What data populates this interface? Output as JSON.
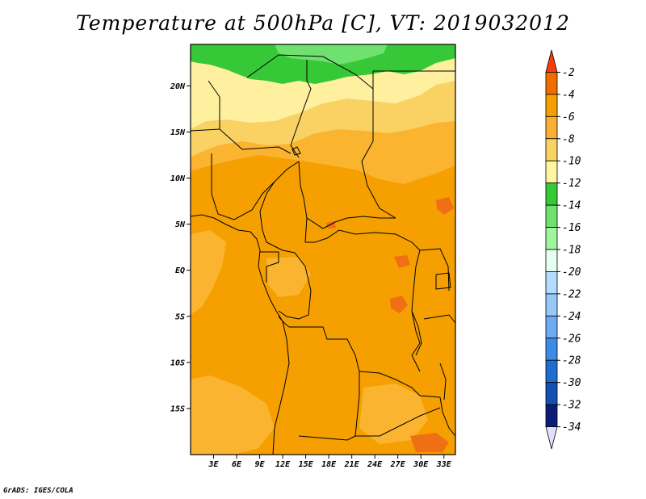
{
  "title": "Temperature at 500hPa [C], VT: 2019032012",
  "credit": "GrADS: IGES/COLA",
  "map": {
    "lon_range": [
      0,
      34.5
    ],
    "lat_range": [
      -20,
      24.5
    ],
    "lat_ticks": [
      {
        "value": 20,
        "label": "20N"
      },
      {
        "value": 15,
        "label": "15N"
      },
      {
        "value": 10,
        "label": "10N"
      },
      {
        "value": 5,
        "label": "5N"
      },
      {
        "value": 0,
        "label": "EQ"
      },
      {
        "value": -5,
        "label": "5S"
      },
      {
        "value": -10,
        "label": "10S"
      },
      {
        "value": -15,
        "label": "15S"
      }
    ],
    "lon_ticks": [
      {
        "value": 3,
        "label": "3E"
      },
      {
        "value": 6,
        "label": "6E"
      },
      {
        "value": 9,
        "label": "9E"
      },
      {
        "value": 12,
        "label": "12E"
      },
      {
        "value": 15,
        "label": "15E"
      },
      {
        "value": 18,
        "label": "18E"
      },
      {
        "value": 21,
        "label": "21E"
      },
      {
        "value": 24,
        "label": "24E"
      },
      {
        "value": 27,
        "label": "27E"
      },
      {
        "value": 30,
        "label": "30E"
      },
      {
        "value": 33,
        "label": "33E"
      }
    ]
  },
  "colorbar": {
    "levels": [
      "-2",
      "-4",
      "-6",
      "-8",
      "-10",
      "-12",
      "-14",
      "-16",
      "-18",
      "-20",
      "-22",
      "-24",
      "-26",
      "-28",
      "-30",
      "-32",
      "-34"
    ],
    "colors": [
      "#fa3c0a",
      "#f06e00",
      "#f5a000",
      "#faaf32",
      "#fad264",
      "#fff5a0",
      "#37c837",
      "#6ee16e",
      "#a0f5a0",
      "#e6fff0",
      "#b4dcff",
      "#96c8f5",
      "#6eaaf0",
      "#3c8ce6",
      "#1e6ed2",
      "#1450b4",
      "#0a1e78",
      "#e1e1ff"
    ]
  },
  "palette": {
    "ocean_base": "#f5a000",
    "land_warm": "#f09a00",
    "light_orange": "#fab430",
    "yellow": "#fad264",
    "pale_yellow": "#fff0a0",
    "green": "#37c837",
    "light_green": "#6ee16e",
    "hot": "#f06e14"
  }
}
